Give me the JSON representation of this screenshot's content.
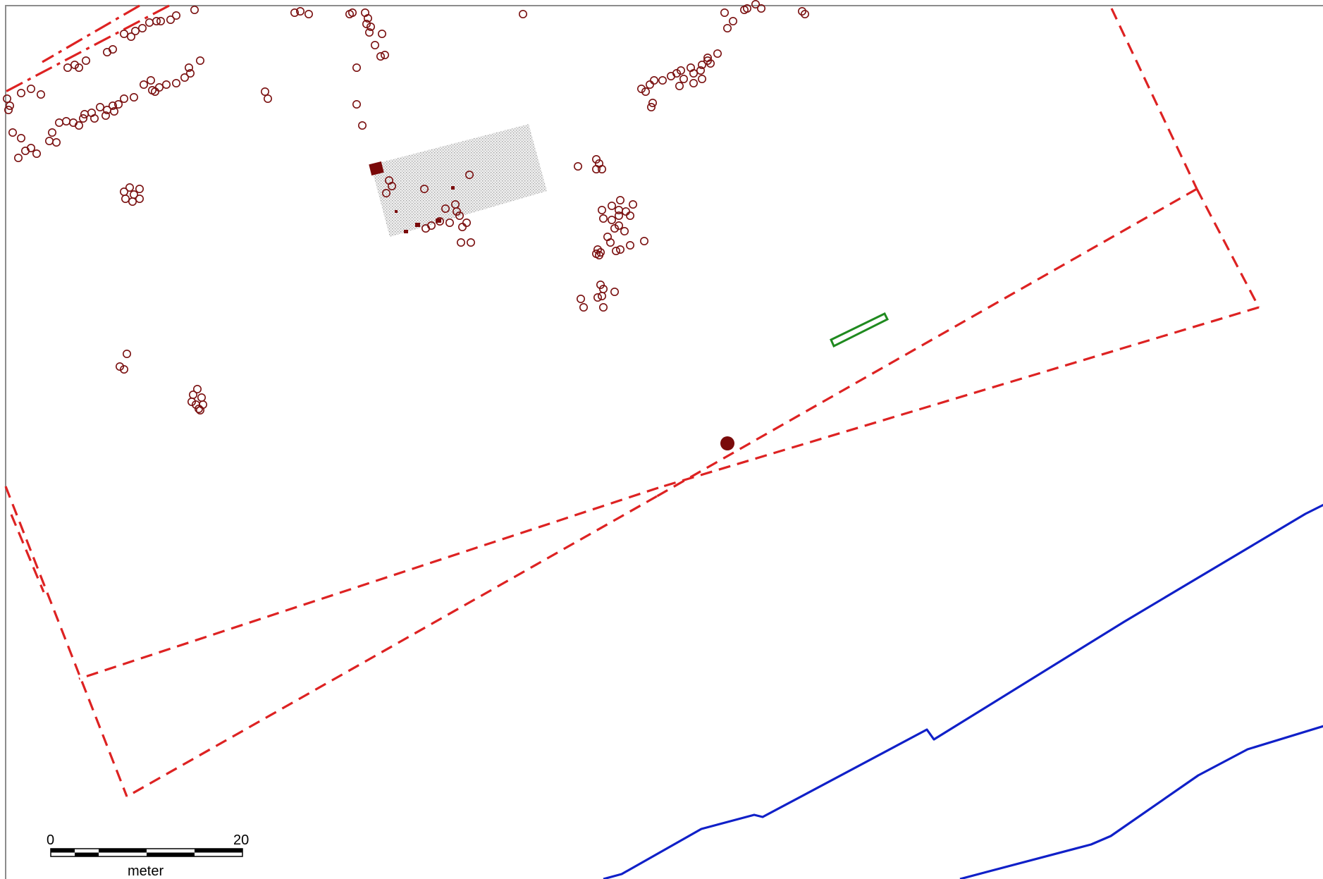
{
  "scale_bar": {
    "label_start": "0",
    "label_end": "20",
    "unit": "meter",
    "segments": 4
  },
  "colors": {
    "boundary": "#dd2222",
    "river": "#1020c8",
    "trench": "#1f8a1f",
    "features": "#7a1010",
    "excavation_fill": "#d8d8d8"
  },
  "layers": [
    "survey-boundary-dashed",
    "river-lines",
    "trench-outline",
    "postholes",
    "excavation-area",
    "find-spot"
  ]
}
